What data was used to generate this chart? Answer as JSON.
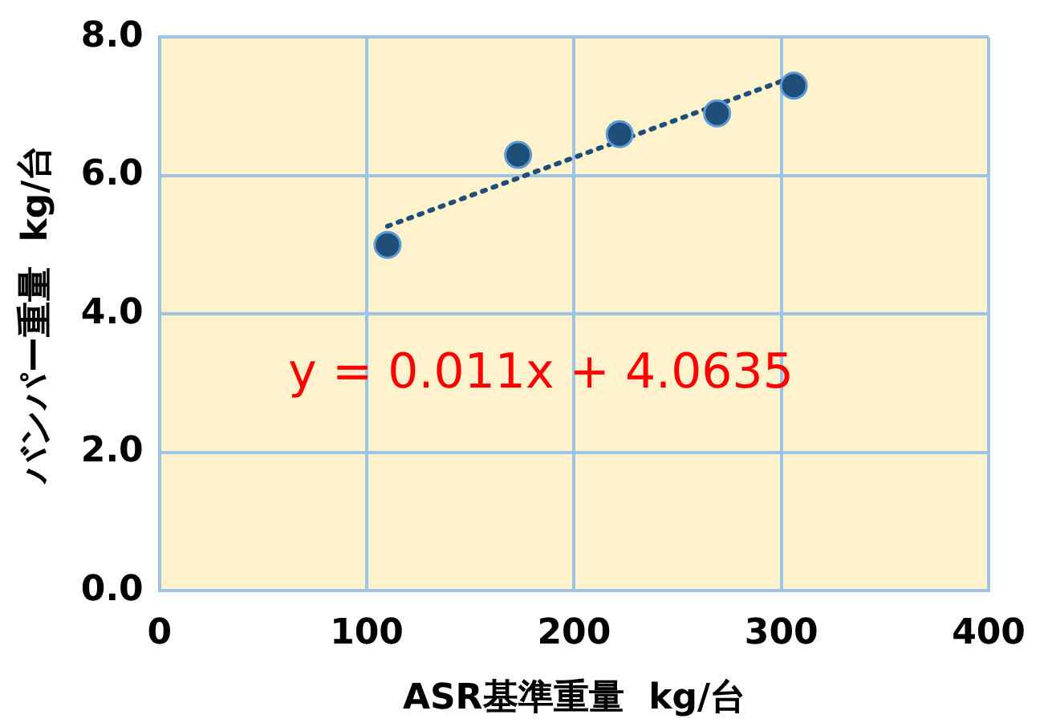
{
  "chart_data": {
    "type": "scatter",
    "xlabel": "ASR基準重量  kg/台",
    "ylabel": "バンパー重量  kg/台",
    "series": [
      {
        "color": "#1f4e79",
        "x": [
          110,
          173,
          222,
          269,
          306
        ],
        "values": [
          5.0,
          6.3,
          6.6,
          6.9,
          7.3
        ],
        "marker": "circle"
      },
      {
        "type": "line",
        "color": "#1f4e79",
        "x": [
          110,
          306
        ],
        "values": [
          5.27,
          7.43
        ],
        "line_style": "dotted",
        "marker": "none"
      }
    ],
    "xlim": [
      0,
      400
    ],
    "xticks": [
      0,
      100,
      200,
      300,
      400
    ],
    "ylim": [
      0,
      8
    ],
    "yticks": [
      {
        "value": 0,
        "label": "0.0"
      },
      {
        "value": 2,
        "label": "2.0"
      },
      {
        "value": 4,
        "label": "4.0"
      },
      {
        "value": 6,
        "label": "6.0"
      },
      {
        "value": 8,
        "label": "8.0"
      }
    ],
    "grid": true,
    "legend": false,
    "annotations": [
      "y = 0.011x + 4.0635"
    ]
  }
}
